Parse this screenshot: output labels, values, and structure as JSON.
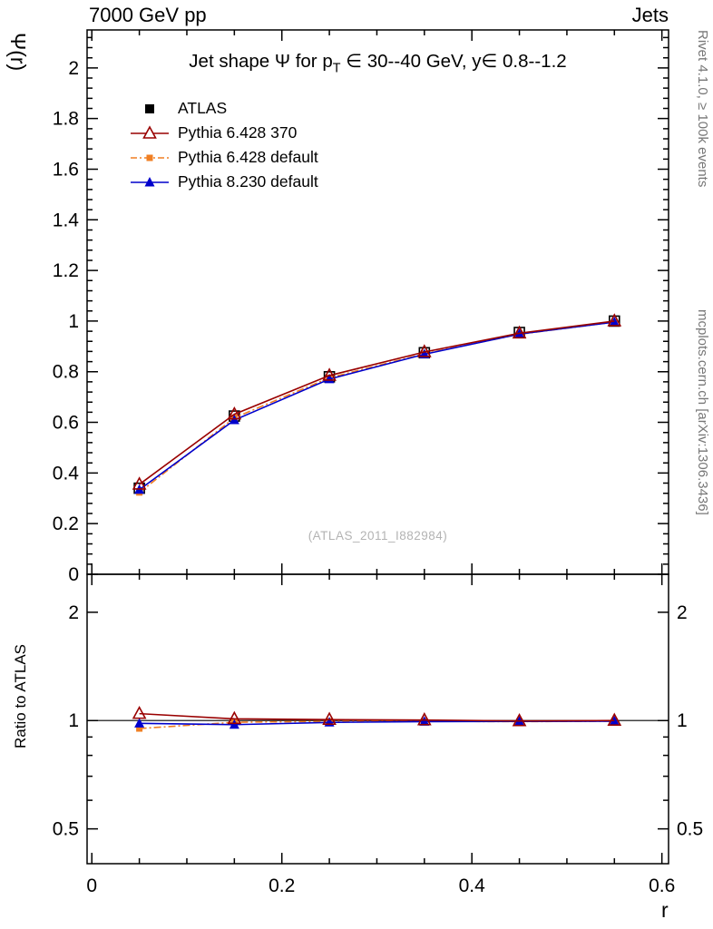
{
  "header": {
    "left": "7000 GeV pp",
    "right": "Jets"
  },
  "title": {
    "pre": "Jet shape Ψ for p",
    "sub": "T",
    "post": " ∈ 30--40 GeV, y∈ 0.8--1.2"
  },
  "watermark": "(ATLAS_2011_I882984)",
  "side_notes": {
    "right_top": "Rivet 4.1.0, ≥ 100k events",
    "right_bottom": "mcplots.cern.ch [arXiv:1306.3436]"
  },
  "chart_data": {
    "type": "line",
    "xlabel": "r",
    "x": [
      0.05,
      0.15,
      0.25,
      0.35,
      0.45,
      0.55
    ],
    "series": [
      {
        "name": "ATLAS",
        "color": "#000000",
        "marker": "square-open",
        "legend_marker": "square-filled",
        "line": "none",
        "zorder": 1,
        "values": [
          0.34,
          0.625,
          0.78,
          0.875,
          0.955,
          1.0
        ],
        "errors": [
          0.008,
          0.007,
          0.006,
          0.005,
          0.004,
          0.002
        ],
        "ratio": null
      },
      {
        "name": "Pythia 6.428 370",
        "color": "#990000",
        "marker": "triangle-open",
        "line": "solid",
        "zorder": 4,
        "values": [
          0.355,
          0.632,
          0.785,
          0.878,
          0.952,
          1.0
        ],
        "ratio": [
          1.045,
          1.011,
          1.006,
          1.003,
          0.997,
          1.0
        ]
      },
      {
        "name": "Pythia 6.428 default",
        "color": "#f07f23",
        "marker": "square-small",
        "line": "dashdot",
        "zorder": 2,
        "values": [
          0.323,
          0.618,
          0.776,
          0.871,
          0.948,
          0.996
        ],
        "ratio": [
          0.95,
          0.989,
          0.995,
          0.995,
          0.993,
          0.996
        ]
      },
      {
        "name": "Pythia 8.230 default",
        "color": "#0000cc",
        "marker": "triangle-filled",
        "line": "solid",
        "zorder": 3,
        "values": [
          0.334,
          0.609,
          0.771,
          0.869,
          0.949,
          0.996
        ],
        "ratio": [
          0.982,
          0.974,
          0.988,
          0.993,
          0.994,
          0.996
        ]
      }
    ],
    "axes": {
      "xlim": [
        -0.005,
        0.607
      ],
      "xticks": {
        "values": [
          0,
          0.2,
          0.4,
          0.6
        ],
        "labels": [
          "0",
          "0.2",
          "0.4",
          "0.6"
        ]
      },
      "x_minor_step": 0.05,
      "main": {
        "ylabel": "Ψ(r)",
        "ylim": [
          0,
          2.15
        ],
        "yticks": {
          "values": [
            0,
            0.2,
            0.4,
            0.6,
            0.8,
            1.0,
            1.2,
            1.4,
            1.6,
            1.8,
            2.0
          ],
          "labels": [
            "0",
            "0.2",
            "0.4",
            "0.6",
            "0.8",
            "1",
            "1.2",
            "1.4",
            "1.6",
            "1.8",
            "2"
          ]
        },
        "y_minor_step": 0.04
      },
      "ratio": {
        "ylabel": "Ratio to ATLAS",
        "scale": "log",
        "ylim": [
          0.4,
          2.55
        ],
        "yticks": {
          "values": [
            0.5,
            1,
            2
          ],
          "labels": [
            "0.5",
            "1",
            "2"
          ]
        },
        "minor_ticks": [
          0.6,
          0.7,
          0.8,
          0.9
        ],
        "reference": 1
      }
    }
  }
}
